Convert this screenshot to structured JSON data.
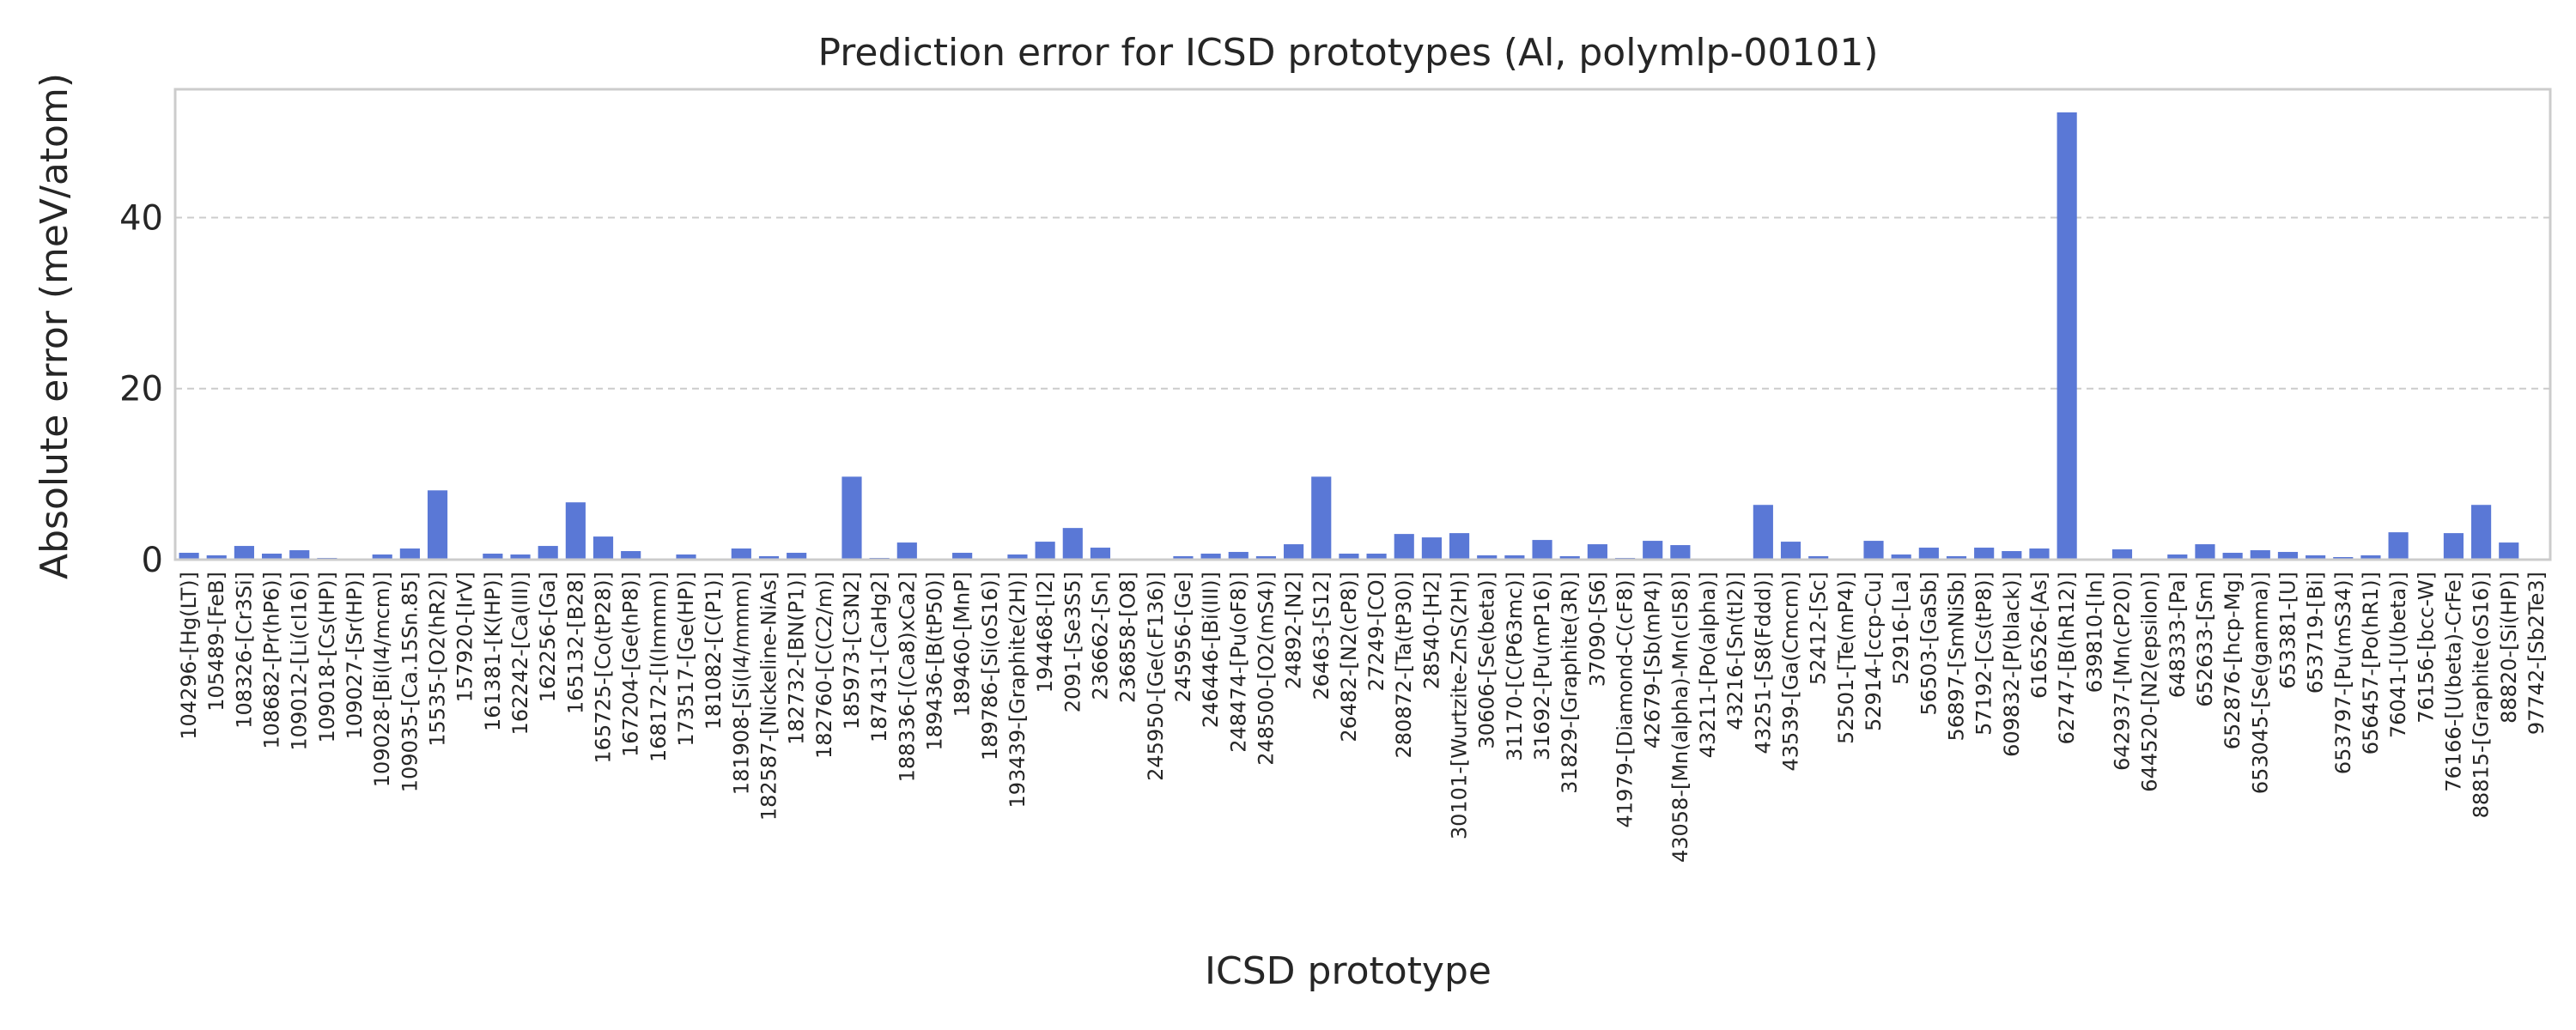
{
  "chart_data": {
    "type": "bar",
    "title": "Prediction error for ICSD prototypes (Al, polymlp-00101)",
    "xlabel": "ICSD prototype",
    "ylabel": "Absolute error (meV/atom)",
    "ylim": [
      0,
      55
    ],
    "yticks": [
      0,
      20,
      40
    ],
    "grid": "horizontal dashed",
    "bar_color": "#5a78d6",
    "categories": [
      "104296-[Hg(LT)]",
      "105489-[FeB]",
      "108326-[Cr3Si]",
      "108682-[Pr(hP6)]",
      "109012-[Li(cI16)]",
      "109018-[Cs(HP)]",
      "109027-[Sr(HP)]",
      "109028-[Bi(I4/mcm)]",
      "109035-[Ca.15Sn.85]",
      "15535-[O2(hR2)]",
      "157920-[IrV]",
      "161381-[K(HP)]",
      "162242-[Ca(III)]",
      "162256-[Ga]",
      "165132-[B28]",
      "165725-[Co(tP28)]",
      "167204-[Ge(hP8)]",
      "168172-[I(Immm)]",
      "173517-[Ge(HP)]",
      "181082-[C(P1)]",
      "181908-[Si(I4/mmm)]",
      "182587-[Nickeline-NiAs]",
      "182732-[BN(P1)]",
      "182760-[C(C2/m)]",
      "185973-[C3N2]",
      "187431-[CaHg2]",
      "188336-[(Ca8)xCa2]",
      "189436-[B(tP50)]",
      "189460-[MnP]",
      "189786-[Si(oS16)]",
      "193439-[Graphite(2H)]",
      "194468-[I2]",
      "2091-[Se3S5]",
      "236662-[Sn]",
      "236858-[O8]",
      "245950-[Ge(cF136)]",
      "245956-[Ge]",
      "246446-[Bi(III)]",
      "248474-[Pu(oF8)]",
      "248500-[O2(mS4)]",
      "24892-[N2]",
      "26463-[S12]",
      "26482-[N2(cP8)]",
      "27249-[CO]",
      "280872-[Ta(tP30)]",
      "28540-[H2]",
      "30101-[Wurtzite-ZnS(2H)]",
      "30606-[Se(beta)]",
      "31170-[C(P63mc)]",
      "31692-[Pu(mP16)]",
      "31829-[Graphite(3R)]",
      "37090-[S6]",
      "41979-[Diamond-C(cF8)]",
      "42679-[Sb(mP4)]",
      "43058-[Mn(alpha)-Mn(cI58)]",
      "43211-[Po(alpha)]",
      "43216-[Sn(tI2)]",
      "43251-[S8(Fddd)]",
      "43539-[Ga(Cmcm)]",
      "52412-[Sc]",
      "52501-[Te(mP4)]",
      "52914-[ccp-Cu]",
      "52916-[La]",
      "56503-[GaSb]",
      "56897-[SmNiSb]",
      "57192-[Cs(tP8)]",
      "609832-[P(black)]",
      "616526-[As]",
      "62747-[B(hR12)]",
      "639810-[In]",
      "642937-[Mn(cP20)]",
      "644520-[N2(epsilon)]",
      "648333-[Pa]",
      "652633-[Sm]",
      "652876-[hcp-Mg]",
      "653045-[Se(gamma)]",
      "653381-[U]",
      "653719-[Bi]",
      "653797-[Pu(mS34)]",
      "656457-[Po(hR1)]",
      "76041-[U(beta)]",
      "76156-[bcc-W]",
      "76166-[U(beta)-CrFe]",
      "88815-[Graphite(oS16)]",
      "88820-[Si(HP)]",
      "97742-[Sb2Te3]"
    ],
    "values": [
      0.8,
      0.5,
      1.6,
      0.7,
      1.1,
      0.2,
      0.1,
      0.6,
      1.3,
      8.1,
      0.1,
      0.7,
      0.6,
      1.6,
      6.7,
      2.7,
      1.0,
      0.1,
      0.6,
      0.1,
      1.3,
      0.4,
      0.8,
      0.1,
      9.7,
      0.2,
      2.0,
      0.1,
      0.8,
      0.1,
      0.6,
      2.1,
      3.7,
      1.4,
      0.1,
      0.1,
      0.4,
      0.7,
      0.9,
      0.4,
      1.8,
      9.7,
      0.7,
      0.7,
      3.0,
      2.6,
      3.1,
      0.5,
      0.5,
      2.3,
      0.4,
      1.8,
      0.2,
      2.2,
      1.7,
      0.1,
      0.1,
      6.4,
      2.1,
      0.4,
      0.1,
      2.2,
      0.6,
      1.4,
      0.4,
      1.4,
      1.0,
      1.3,
      52.3,
      0.1,
      1.2,
      0.1,
      0.6,
      1.8,
      0.8,
      1.1,
      0.9,
      0.5,
      0.3,
      0.5,
      3.2,
      0.1,
      3.1,
      6.4,
      2.0,
      0.1
    ]
  }
}
